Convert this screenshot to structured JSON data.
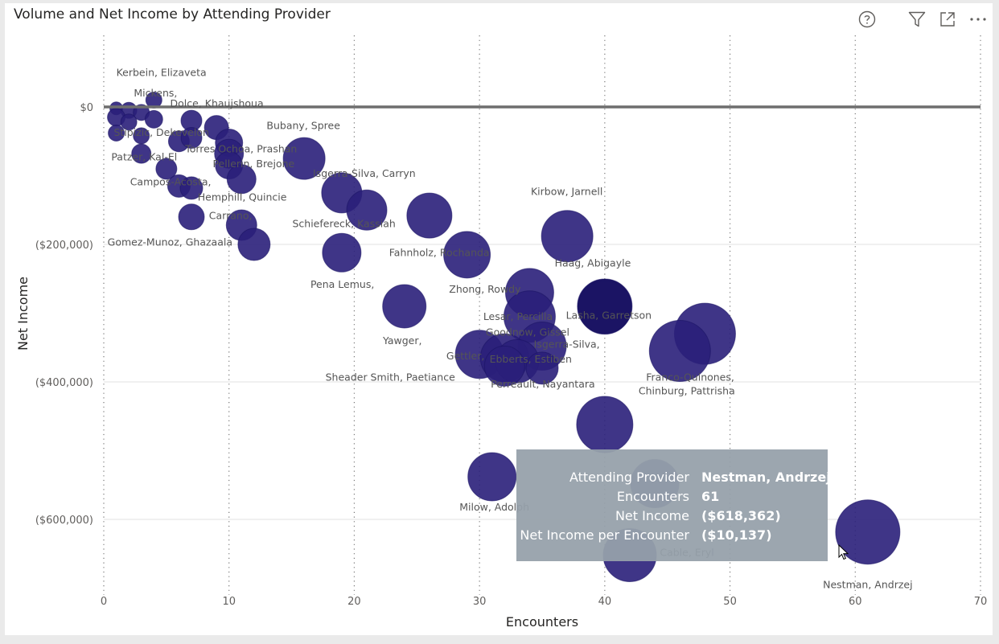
{
  "visual": {
    "title": "Volume and Net Income by Attending Provider",
    "icons": [
      "help-icon",
      "filter-icon",
      "focus-mode-icon",
      "more-options-icon"
    ]
  },
  "chart_data": {
    "type": "scatter",
    "title": "Volume and Net Income by Attending Provider",
    "xlabel": "Encounters",
    "ylabel": "Net Income",
    "xlim": [
      0,
      70
    ],
    "ylim": [
      -720000,
      100000
    ],
    "x_ticks": [
      0,
      10,
      20,
      30,
      40,
      50,
      60,
      70
    ],
    "y_ticks": [
      0,
      -200000,
      -400000,
      -600000
    ],
    "y_tick_labels": [
      "$0",
      "($200,000)",
      "($400,000)",
      "($600,000)"
    ],
    "reference_line_y": 0,
    "grid": {
      "x": "dotted",
      "y": "solid"
    },
    "bubble_color": "#2a1f7a",
    "bubble_highlight_color": "#1b1464",
    "points": [
      {
        "label": "Kerbein, Elizaveta",
        "x": 1,
        "y": -2000,
        "r": 8
      },
      {
        "label": "",
        "x": 2,
        "y": -5000,
        "r": 10
      },
      {
        "label": "Mickens,",
        "x": 3,
        "y": -8000,
        "r": 10
      },
      {
        "label": "",
        "x": 4,
        "y": 10000,
        "r": 10
      },
      {
        "label": "",
        "x": 1,
        "y": -15000,
        "r": 11
      },
      {
        "label": "",
        "x": 2,
        "y": -22000,
        "r": 10
      },
      {
        "label": "",
        "x": 4,
        "y": -18000,
        "r": 11
      },
      {
        "label": "Dolce, Khaujshoua",
        "x": 7,
        "y": -20000,
        "r": 13
      },
      {
        "label": "",
        "x": 1,
        "y": -38000,
        "r": 10
      },
      {
        "label": "Stipizic, Dekevelon",
        "x": 3,
        "y": -42000,
        "r": 10
      },
      {
        "label": "",
        "x": 9,
        "y": -30000,
        "r": 15
      },
      {
        "label": "",
        "x": 6,
        "y": -50000,
        "r": 13
      },
      {
        "label": "",
        "x": 7,
        "y": -45000,
        "r": 13
      },
      {
        "label": "",
        "x": 10,
        "y": -52000,
        "r": 17
      },
      {
        "label": "Torres Ochoa, Prashan",
        "x": 10,
        "y": -68000,
        "r": 18
      },
      {
        "label": "Patzer, Kal-El",
        "x": 3,
        "y": -68000,
        "r": 12
      },
      {
        "label": "Bubany, Spree",
        "x": 16,
        "y": -75000,
        "r": 26
      },
      {
        "label": "",
        "x": 5,
        "y": -90000,
        "r": 13
      },
      {
        "label": "Pellerin, Brejone",
        "x": 10,
        "y": -85000,
        "r": 17
      },
      {
        "label": "",
        "x": 11,
        "y": -105000,
        "r": 18
      },
      {
        "label": "Campos-Acosta,",
        "x": 6,
        "y": -115000,
        "r": 14
      },
      {
        "label": "",
        "x": 7,
        "y": -118000,
        "r": 14
      },
      {
        "label": "Hemphill, Quincie",
        "x": 7,
        "y": -160000,
        "r": 16
      },
      {
        "label": "Carrano,",
        "x": 11,
        "y": -172000,
        "r": 19
      },
      {
        "label": "Gomez-Munoz, Ghazaala",
        "x": 12,
        "y": -200000,
        "r": 20
      },
      {
        "label": "Isgerra-Silva, Carryn",
        "x": 19,
        "y": -125000,
        "r": 25
      },
      {
        "label": "",
        "x": 21,
        "y": -150000,
        "r": 25
      },
      {
        "label": "Schiefereck, Kassiah",
        "x": 26,
        "y": -158000,
        "r": 28
      },
      {
        "label": "Fahnholz, Rochanda",
        "x": 29,
        "y": -215000,
        "r": 29
      },
      {
        "label": "Pena Lemus,",
        "x": 19,
        "y": -212000,
        "r": 24
      },
      {
        "label": "Kirbow, Jarnell",
        "x": 37,
        "y": -188000,
        "r": 32
      },
      {
        "label": "Zhong, Rowdy",
        "x": 34,
        "y": -270000,
        "r": 30
      },
      {
        "label": "Yawger,",
        "x": 24,
        "y": -290000,
        "r": 27
      },
      {
        "label": "Haag, Abigayle",
        "x": 40,
        "y": -290000,
        "r": 34,
        "highlight": true
      },
      {
        "label": "Lesar, Percilla",
        "x": 34,
        "y": -305000,
        "r": 32
      },
      {
        "label": "Lasha, Garretson",
        "x": 40,
        "y": -292000,
        "r": 33,
        "highlight": true
      },
      {
        "label": "Goodnow, Gissel",
        "x": 35,
        "y": -348000,
        "r": 30
      },
      {
        "label": "Isgerra-Silva,",
        "x": 48,
        "y": -330000,
        "r": 38
      },
      {
        "label": "Gettler,",
        "x": 30,
        "y": -360000,
        "r": 30
      },
      {
        "label": "Ebberts, Estiben",
        "x": 32,
        "y": -365000,
        "r": 30
      },
      {
        "label": "",
        "x": 33,
        "y": -370000,
        "r": 27
      },
      {
        "label": "Sheader Smith, Paetiance",
        "x": 32,
        "y": -377000,
        "r": 25
      },
      {
        "label": "Franco-Quinones,",
        "x": 46,
        "y": -355000,
        "r": 38
      },
      {
        "label": "Perreault, Nayantara",
        "x": 35,
        "y": -380000,
        "r": 20
      },
      {
        "label": "Chinburg, Pattrisha",
        "x": 40,
        "y": -462000,
        "r": 35
      },
      {
        "label": "Milow, Adolph",
        "x": 31,
        "y": -538000,
        "r": 30
      },
      {
        "label": "",
        "x": 44,
        "y": -548000,
        "r": 30
      },
      {
        "label": "Cable, Eryl",
        "x": 42,
        "y": -652000,
        "r": 33
      },
      {
        "label": "Nestman, Andrzej",
        "x": 61,
        "y": -618362,
        "r": 40
      }
    ],
    "visible_labels": [
      {
        "text": "Kerbein, Elizaveta",
        "x": 1,
        "y": 45000,
        "anchor": "start"
      },
      {
        "text": "Mickens,",
        "x": 2.4,
        "y": 15000,
        "anchor": "start"
      },
      {
        "text": "Dolce, Khaujshoua",
        "x": 5.3,
        "y": 0,
        "anchor": "start"
      },
      {
        "text": "Bubany, Spree",
        "x": 13,
        "y": -32000,
        "anchor": "start"
      },
      {
        "text": "Stipizic, Dekevelon",
        "x": 0.8,
        "y": -42000,
        "anchor": "start"
      },
      {
        "text": "Torres Ochoa, Prashan",
        "x": 6.5,
        "y": -66000,
        "anchor": "start"
      },
      {
        "text": "Patzer, Kal-El",
        "x": 0.6,
        "y": -78000,
        "anchor": "start"
      },
      {
        "text": "Pellerin, Brejone",
        "x": 8.7,
        "y": -88000,
        "anchor": "start"
      },
      {
        "text": "Isgerra-Silva, Carryn",
        "x": 24.9,
        "y": -102000,
        "anchor": "end"
      },
      {
        "text": "Campos-Acosta,",
        "x": 2.1,
        "y": -114000,
        "anchor": "start"
      },
      {
        "text": "Kirbow, Jarnell",
        "x": 34.1,
        "y": -128000,
        "anchor": "start"
      },
      {
        "text": "Hemphill, Quincie",
        "x": 7.5,
        "y": -136000,
        "anchor": "start"
      },
      {
        "text": "Carrano,",
        "x": 8.4,
        "y": -163000,
        "anchor": "start"
      },
      {
        "text": "Schiefereck, Kassiah",
        "x": 23.3,
        "y": -175000,
        "anchor": "end"
      },
      {
        "text": "Gomez-Munoz, Ghazaala",
        "x": 0.3,
        "y": -202000,
        "anchor": "start"
      },
      {
        "text": "Fahnholz, Rochanda",
        "x": 30.8,
        "y": -217000,
        "anchor": "end"
      },
      {
        "text": "Haag, Abigayle",
        "x": 36,
        "y": -232000,
        "anchor": "start"
      },
      {
        "text": "Pena Lemus,",
        "x": 21.6,
        "y": -263000,
        "anchor": "end"
      },
      {
        "text": "Zhong, Rowdy",
        "x": 33.3,
        "y": -270000,
        "anchor": "end"
      },
      {
        "text": "Lesar, Percilla",
        "x": 30.3,
        "y": -310000,
        "anchor": "start"
      },
      {
        "text": "Lasha, Garretson",
        "x": 36.9,
        "y": -308000,
        "anchor": "start"
      },
      {
        "text": "Goodnow, Gissel",
        "x": 30.5,
        "y": -333000,
        "anchor": "start"
      },
      {
        "text": "Yawger,",
        "x": 25.4,
        "y": -345000,
        "anchor": "end"
      },
      {
        "text": "Isgerra-Silva,",
        "x": 39.6,
        "y": -350000,
        "anchor": "end"
      },
      {
        "text": "Gettler,",
        "x": 30.4,
        "y": -367000,
        "anchor": "end"
      },
      {
        "text": "Ebberts, Estiben",
        "x": 30.8,
        "y": -372000,
        "anchor": "start"
      },
      {
        "text": "Sheader Smith, Paetiance",
        "x": 17.7,
        "y": -398000,
        "anchor": "start"
      },
      {
        "text": "Franco-Quinones,",
        "x": 43.3,
        "y": -398000,
        "anchor": "start"
      },
      {
        "text": "Perreault, Nayantara",
        "x": 30.9,
        "y": -408000,
        "anchor": "start"
      },
      {
        "text": "Chinburg, Pattrisha",
        "x": 42.7,
        "y": -418000,
        "anchor": "start"
      },
      {
        "text": "Milow, Adolph",
        "x": 28.4,
        "y": -587000,
        "anchor": "start"
      },
      {
        "text": "Cable, Eryl",
        "x": 44.4,
        "y": -653000,
        "anchor": "start"
      },
      {
        "text": "Nestman, Andrzej",
        "x": 61,
        "y": -700000,
        "anchor": "middle"
      }
    ]
  },
  "tooltip": {
    "rows": [
      {
        "key": "Attending Provider",
        "value": "Nestman, Andrzej"
      },
      {
        "key": "Encounters",
        "value": "61"
      },
      {
        "key": "Net Income",
        "value": "($618,362)"
      },
      {
        "key": "Net Income per Encounter",
        "value": "($10,137)"
      }
    ]
  }
}
